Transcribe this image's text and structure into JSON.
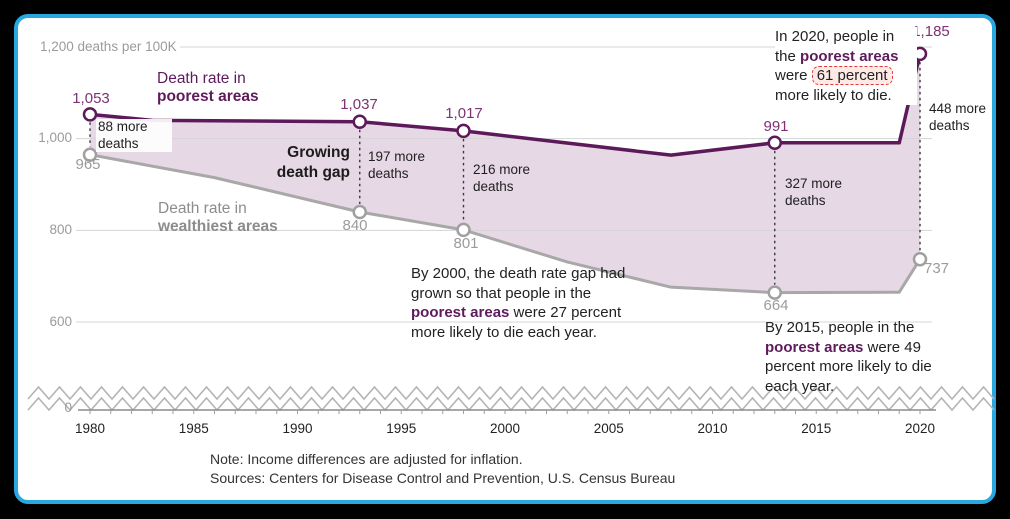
{
  "frame": {
    "border_color": "#29a8e0",
    "background": "#000000"
  },
  "chart_data": {
    "type": "area-line",
    "title": "Growing death gap",
    "unit_label": "1,200 deaths per 100K",
    "x": {
      "min": 1980,
      "max": 2020,
      "ticks": [
        "1980",
        "1985",
        "1990",
        "1995",
        "2000",
        "2005",
        "2010",
        "2015",
        "2020"
      ],
      "tick_years": [
        1980,
        1985,
        1990,
        1995,
        2000,
        2005,
        2010,
        2015,
        2020
      ]
    },
    "y": {
      "gridlines": [
        600,
        800,
        1000,
        1200
      ],
      "labels": [
        "1,200 deaths per 100K",
        "1,000",
        "800",
        "600",
        "0"
      ],
      "unit": "deaths per 100K"
    },
    "series": [
      {
        "name": "Death rate in poorest areas",
        "color": "#5c1a5a",
        "points": [
          [
            1980,
            1053
          ],
          [
            1983,
            1040
          ],
          [
            1993,
            1037
          ],
          [
            1998,
            1017
          ],
          [
            2008,
            964
          ],
          [
            2013,
            991
          ],
          [
            2019,
            991
          ],
          [
            2020,
            1185
          ]
        ],
        "marker_points": [
          [
            1980,
            1053
          ],
          [
            1993,
            1037
          ],
          [
            1998,
            1017
          ],
          [
            2013,
            991
          ],
          [
            2020,
            1185
          ]
        ],
        "marker_labels": [
          "1,053",
          "1,037",
          "1,017",
          "991",
          "1,185"
        ]
      },
      {
        "name": "Death rate in wealthiest areas",
        "color": "#a8a8a8",
        "points": [
          [
            1980,
            965
          ],
          [
            1986,
            915
          ],
          [
            1993,
            840
          ],
          [
            1998,
            801
          ],
          [
            2003,
            731
          ],
          [
            2008,
            676
          ],
          [
            2013,
            664
          ],
          [
            2019,
            665
          ],
          [
            2020,
            737
          ]
        ],
        "marker_points": [
          [
            1980,
            965
          ],
          [
            1993,
            840
          ],
          [
            1998,
            801
          ],
          [
            2013,
            664
          ],
          [
            2020,
            737
          ]
        ],
        "marker_labels": [
          "965",
          "840",
          "801",
          "664",
          "737"
        ]
      }
    ],
    "connector_years": [
      1980,
      1993,
      1998,
      2013,
      2020
    ],
    "gaps": [
      {
        "year": 1980,
        "label": "88 more deaths"
      },
      {
        "year": 1993,
        "label": "197 more deaths"
      },
      {
        "year": 1998,
        "label": "216 more deaths"
      },
      {
        "year": 2013,
        "label": "327 more deaths"
      },
      {
        "year": 2020,
        "label": "448 more deaths"
      }
    ]
  },
  "labels": {
    "poorest": {
      "line1": "Death rate in",
      "line2": "poorest areas"
    },
    "wealthiest": {
      "line1": "Death rate in",
      "line2": "wealthiest areas"
    },
    "gap": {
      "line1": "Growing",
      "line2": "death gap"
    }
  },
  "callouts": {
    "by2000": {
      "t1": "By 2000, the death rate gap had grown so that people in the ",
      "highlight": "poorest areas",
      "t2": " were 27 percent more likely to die each year."
    },
    "by2015": {
      "t1": "By 2015, people in the ",
      "highlight": "poorest areas",
      "t2": " were 49 percent more likely to die each year."
    },
    "in2020": {
      "t1": "In 2020, people in the ",
      "highlight": "poorest areas",
      "t2": " were ",
      "boxed": "61 percent",
      "t3": " more likely to die."
    }
  },
  "footer": {
    "note": "Note: Income differences are adjusted for inflation.",
    "sources": "Sources: Centers for Disease Control and Prevention, U.S. Census Bureau"
  },
  "colors": {
    "poorest": "#5c1a5a",
    "poorest_label": "#7e3173",
    "wealthiest": "#a8a8a8",
    "wealthiest_label": "#9b9b9b",
    "fill": "#e6d8e4",
    "gridline": "#d4d4d4",
    "highlight_box_border": "#e23b3b",
    "highlight_box_bg": "#fdeae6"
  }
}
